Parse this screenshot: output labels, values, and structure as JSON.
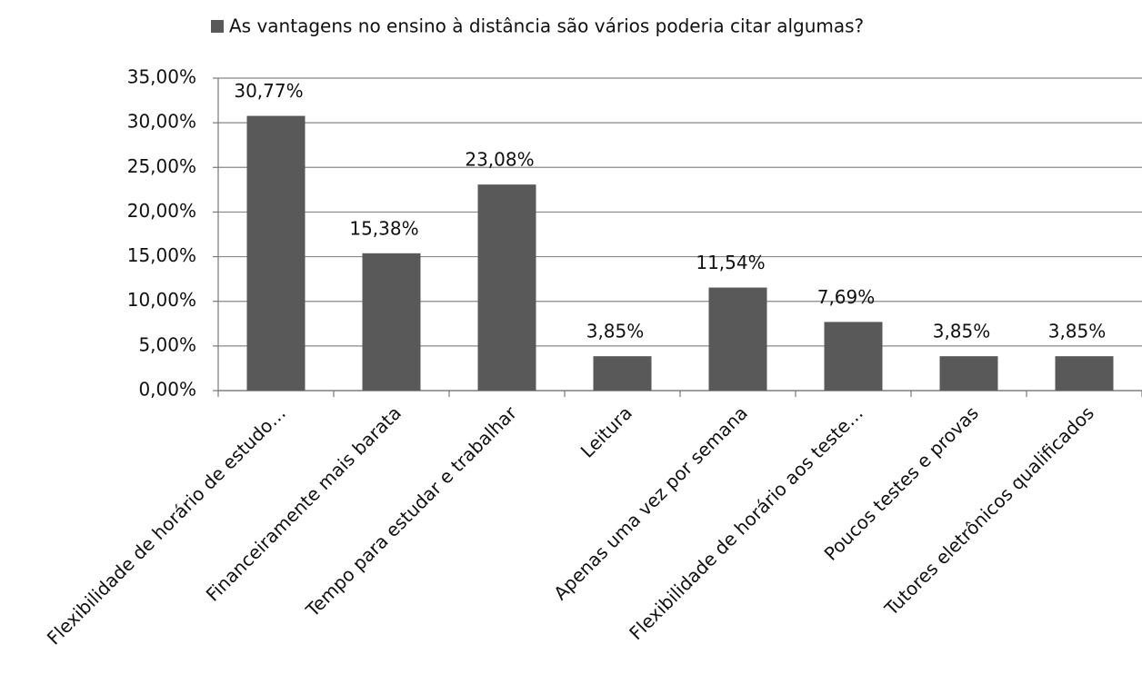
{
  "chart_data": {
    "type": "bar",
    "categories": [
      "Flexibilidade de horário de estudo…",
      "Financeiramente mais barata",
      "Tempo para estudar e trabalhar",
      "Leitura",
      "Apenas uma vez por semana",
      "Flexibilidade de horário aos teste…",
      "Poucos testes e provas",
      "Tutores eletrônicos qualificados"
    ],
    "series": [
      {
        "name": "As vantagens no ensino à distância são vários poderia citar algumas?",
        "color": "#595959",
        "values": [
          30.77,
          15.38,
          23.08,
          3.85,
          11.54,
          7.69,
          3.85,
          3.85
        ],
        "value_labels": [
          "30,77%",
          "15,38%",
          "23,08%",
          "3,85%",
          "11,54%",
          "7,69%",
          "3,85%",
          "3,85%"
        ]
      }
    ],
    "ylim": [
      0,
      35
    ],
    "yticks": [
      {
        "value": 0,
        "label": "0,00%"
      },
      {
        "value": 5,
        "label": "5,00%"
      },
      {
        "value": 10,
        "label": "10,00%"
      },
      {
        "value": 15,
        "label": "15,00%"
      },
      {
        "value": 20,
        "label": "20,00%"
      },
      {
        "value": 25,
        "label": "25,00%"
      },
      {
        "value": 30,
        "label": "30,00%"
      },
      {
        "value": 35,
        "label": "35,00%"
      }
    ],
    "grid": true,
    "legend": "top"
  }
}
